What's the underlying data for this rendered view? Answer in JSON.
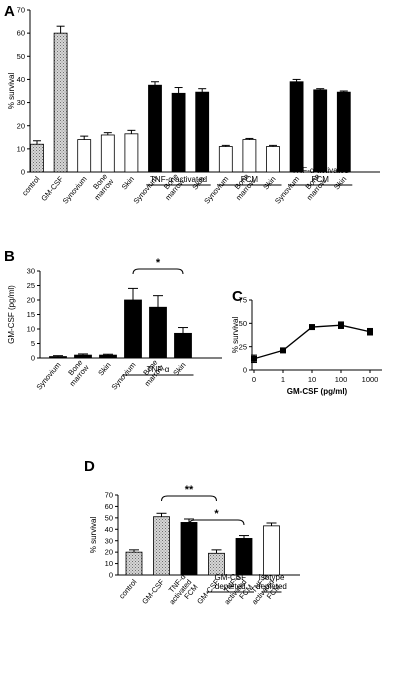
{
  "colors": {
    "black": "#000000",
    "white": "#ffffff",
    "stipple": "#bdbdbd"
  },
  "chart_data": [
    {
      "panel": "A",
      "type": "bar",
      "ylabel": "% survival",
      "ylim": [
        0,
        70
      ],
      "yticks": [
        0,
        10,
        20,
        30,
        40,
        50,
        60,
        70
      ],
      "bars": [
        {
          "label": "control",
          "value": 12,
          "error": 1.5,
          "fill": "stipple"
        },
        {
          "label": "GM-CSF",
          "value": 60,
          "error": 3,
          "fill": "stipple"
        },
        {
          "label": "Synovium",
          "value": 14,
          "error": 1.5,
          "fill": "white"
        },
        {
          "label": "Bone marrow",
          "value": 16,
          "error": 1,
          "fill": "white"
        },
        {
          "label": "Skin",
          "value": 16.5,
          "error": 1.5,
          "fill": "white"
        },
        {
          "label": "Synovium",
          "value": 37.5,
          "error": 1.5,
          "fill": "black"
        },
        {
          "label": "Bone marrow",
          "value": 34,
          "error": 2.5,
          "fill": "black"
        },
        {
          "label": "Skin",
          "value": 34.5,
          "error": 1.5,
          "fill": "black"
        },
        {
          "label": "Synovium",
          "value": 11,
          "error": 0.5,
          "fill": "white"
        },
        {
          "label": "Bone marrow",
          "value": 14,
          "error": 0.5,
          "fill": "white"
        },
        {
          "label": "Skin",
          "value": 11,
          "error": 0.5,
          "fill": "white"
        },
        {
          "label": "Synovium",
          "value": 39,
          "error": 1,
          "fill": "black"
        },
        {
          "label": "Bone marrow",
          "value": 35.5,
          "error": 0.5,
          "fill": "black"
        },
        {
          "label": "Skin",
          "value": 34.5,
          "error": 0.5,
          "fill": "black"
        }
      ],
      "groups": [
        {
          "label": "TNF-α activated",
          "bars": [
            5,
            7
          ]
        },
        {
          "label": "FCM",
          "bars": [
            8,
            10
          ]
        },
        {
          "label": "TNF-α activated FCM",
          "bars": [
            11,
            13
          ]
        }
      ]
    },
    {
      "panel": "B",
      "type": "bar",
      "ylabel": "GM-CSF (pg/ml)",
      "ylim": [
        0,
        30
      ],
      "yticks": [
        0,
        5,
        10,
        15,
        20,
        25,
        30
      ],
      "bars": [
        {
          "label": "Synovium",
          "value": 0.5,
          "error": 0.3,
          "fill": "black"
        },
        {
          "label": "Bone marrow",
          "value": 1,
          "error": 0.4,
          "fill": "black"
        },
        {
          "label": "Skin",
          "value": 1,
          "error": 0.3,
          "fill": "black"
        },
        {
          "label": "Synovium",
          "value": 20,
          "error": 4,
          "fill": "black"
        },
        {
          "label": "Bone marrow",
          "value": 17.5,
          "error": 4,
          "fill": "black"
        },
        {
          "label": "Skin",
          "value": 8.5,
          "error": 2,
          "fill": "black"
        }
      ],
      "groups": [
        {
          "label": "TNF-α",
          "bars": [
            3,
            5
          ]
        }
      ],
      "significance": [
        {
          "from": 3,
          "to": 5,
          "label": "*"
        }
      ]
    },
    {
      "panel": "C",
      "type": "line",
      "ylabel": "% survival",
      "xlabel": "GM-CSF (pg/ml)",
      "ylim": [
        0,
        75
      ],
      "yticks": [
        0,
        25,
        50,
        75
      ],
      "xticks": [
        "0",
        "1",
        "10",
        "100",
        "1000"
      ],
      "x": [
        0,
        1,
        2,
        3,
        4
      ],
      "y": [
        12,
        21,
        46,
        48,
        41
      ],
      "errors": [
        4,
        2,
        2,
        3.5,
        3.5
      ]
    },
    {
      "panel": "D",
      "type": "bar",
      "ylabel": "% survival",
      "ylim": [
        0,
        70
      ],
      "yticks": [
        0,
        10,
        20,
        30,
        40,
        50,
        60,
        70
      ],
      "bars": [
        {
          "label": "control",
          "value": 20,
          "error": 2,
          "fill": "stipple"
        },
        {
          "label": "GM-CSF",
          "value": 51,
          "error": 3,
          "fill": "stipple"
        },
        {
          "label": "TNF-α activated FCM",
          "value": 46,
          "error": 3,
          "fill": "black"
        },
        {
          "label": "GM-CSF",
          "value": 19,
          "error": 3,
          "fill": "stipple"
        },
        {
          "label": "TNF-α activated FCM",
          "value": 32,
          "error": 2.5,
          "fill": "black"
        },
        {
          "label": "TNF-α activated FCM",
          "value": 43,
          "error": 2.5,
          "fill": "white"
        }
      ],
      "groups": [
        {
          "label": "GM-CSF depleted",
          "bars": [
            3,
            4
          ]
        },
        {
          "label": "Isotype depleted",
          "bars": [
            5,
            5
          ]
        }
      ],
      "significance": [
        {
          "from": 1,
          "to": 3,
          "label": "**"
        },
        {
          "from": 2,
          "to": 4,
          "label": "*"
        }
      ]
    }
  ]
}
